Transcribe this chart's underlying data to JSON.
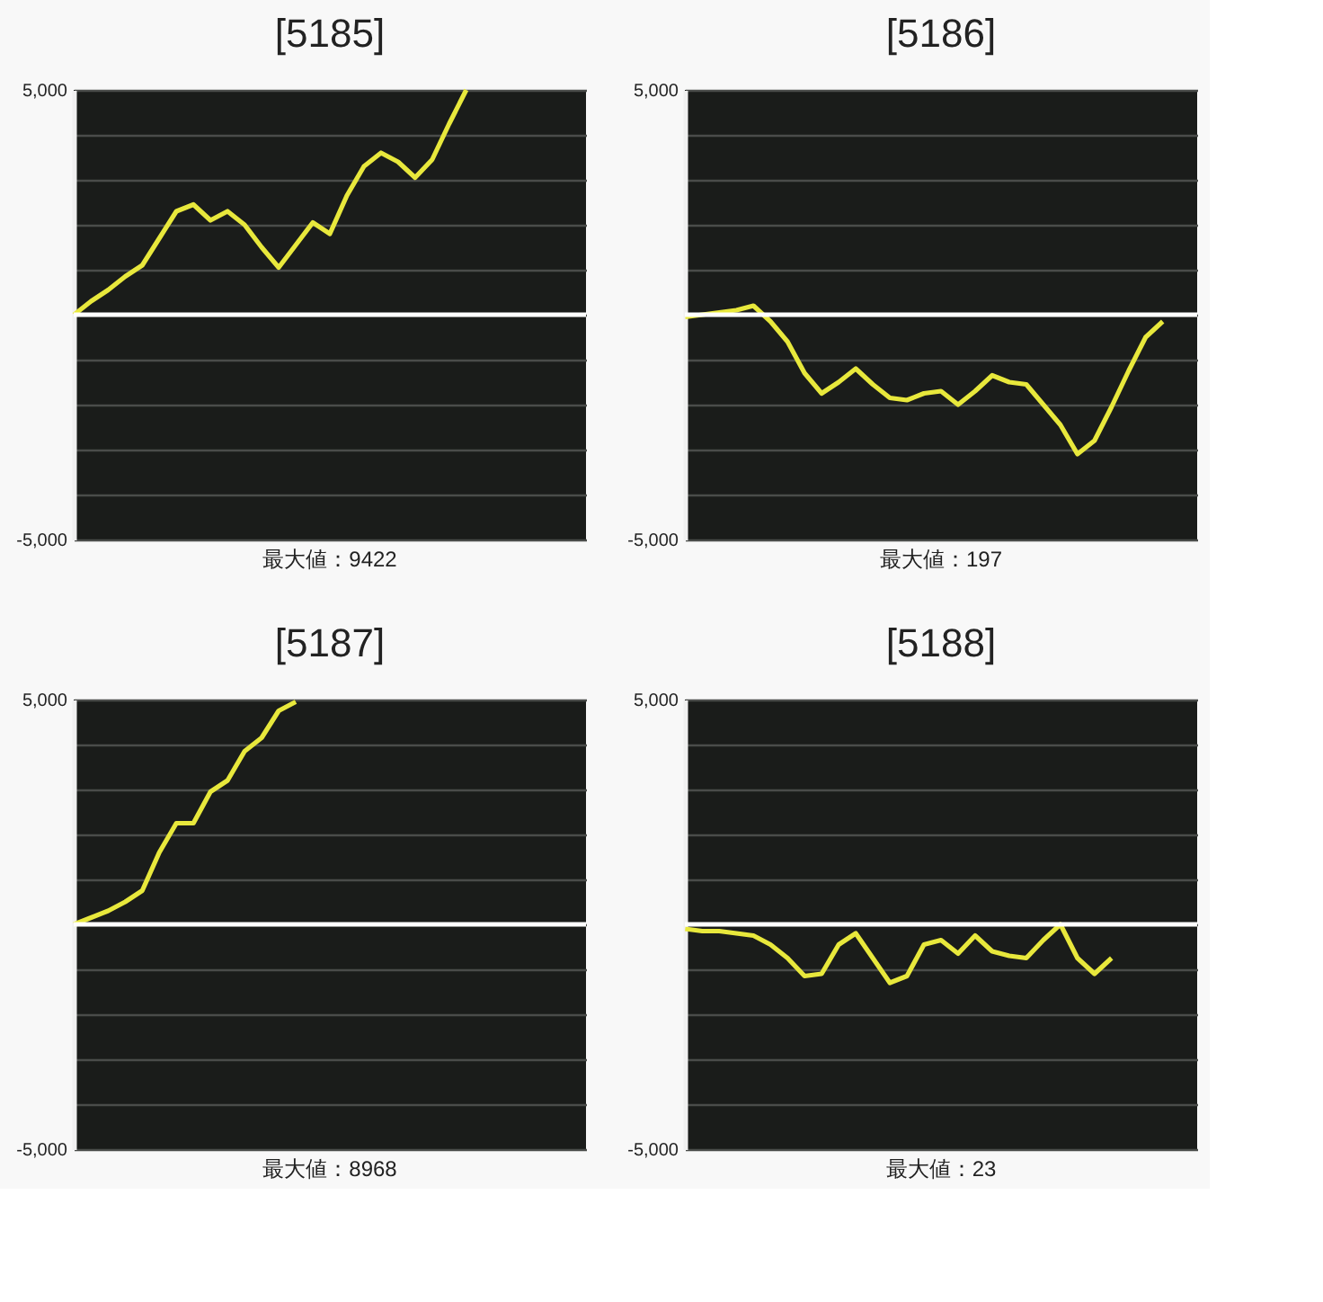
{
  "chart_data": [
    {
      "type": "line",
      "title": "[5185]",
      "categories": [
        null,
        null,
        null,
        null,
        null,
        null,
        null,
        null,
        null,
        null,
        null,
        null,
        null,
        null,
        null,
        null,
        null,
        null,
        null,
        null,
        null,
        null,
        null,
        null,
        null,
        null,
        null,
        null,
        null,
        null,
        null
      ],
      "series": [
        {
          "color": "#e8e83c",
          "values": [
            0,
            300,
            550,
            850,
            1100,
            1700,
            2300,
            2450,
            2100,
            2300,
            2000,
            1500,
            1050,
            1550,
            2050,
            1800,
            2650,
            3300,
            3600,
            3400,
            3050,
            3450,
            4250,
            5000,
            null,
            null,
            null,
            null,
            null,
            null,
            null
          ]
        }
      ],
      "ylim": [
        -5000,
        5000
      ],
      "yticks": [
        {
          "value": 5000,
          "label": "5,000"
        },
        {
          "value": 4000,
          "label": null
        },
        {
          "value": 3000,
          "label": null
        },
        {
          "value": 2000,
          "label": null
        },
        {
          "value": 1000,
          "label": null
        },
        {
          "value": 0,
          "label": null
        },
        {
          "value": -1000,
          "label": null
        },
        {
          "value": -2000,
          "label": null
        },
        {
          "value": -3000,
          "label": null
        },
        {
          "value": -4000,
          "label": null
        },
        {
          "value": -5000,
          "label": "-5,000"
        }
      ],
      "grid": "y",
      "tick_labels": "y",
      "ref_lines": [
        {
          "axis": "y",
          "value": 0,
          "color": "#ffffff"
        }
      ],
      "annotations": [
        "最大値：9422"
      ]
    },
    {
      "type": "line",
      "title": "[5186]",
      "categories": [
        null,
        null,
        null,
        null,
        null,
        null,
        null,
        null,
        null,
        null,
        null,
        null,
        null,
        null,
        null,
        null,
        null,
        null,
        null,
        null,
        null,
        null,
        null,
        null,
        null,
        null,
        null,
        null,
        null,
        null,
        null
      ],
      "series": [
        {
          "color": "#e8e83c",
          "values": [
            -50,
            0,
            50,
            100,
            200,
            -150,
            -600,
            -1300,
            -1750,
            -1500,
            -1200,
            -1550,
            -1850,
            -1900,
            -1750,
            -1700,
            -2000,
            -1700,
            -1350,
            -1500,
            -1550,
            -2000,
            -2450,
            -3100,
            -2800,
            -2050,
            -1250,
            -500,
            -150,
            null,
            null
          ]
        }
      ],
      "ylim": [
        -5000,
        5000
      ],
      "yticks": [
        {
          "value": 5000,
          "label": "5,000"
        },
        {
          "value": 4000,
          "label": null
        },
        {
          "value": 3000,
          "label": null
        },
        {
          "value": 2000,
          "label": null
        },
        {
          "value": 1000,
          "label": null
        },
        {
          "value": 0,
          "label": null
        },
        {
          "value": -1000,
          "label": null
        },
        {
          "value": -2000,
          "label": null
        },
        {
          "value": -3000,
          "label": null
        },
        {
          "value": -4000,
          "label": null
        },
        {
          "value": -5000,
          "label": "-5,000"
        }
      ],
      "grid": "y",
      "tick_labels": "y",
      "ref_lines": [
        {
          "axis": "y",
          "value": 0,
          "color": "#ffffff"
        }
      ],
      "annotations": [
        "最大値：197"
      ]
    },
    {
      "type": "line",
      "title": "[5187]",
      "categories": [
        null,
        null,
        null,
        null,
        null,
        null,
        null,
        null,
        null,
        null,
        null,
        null,
        null,
        null,
        null,
        null,
        null,
        null,
        null,
        null,
        null,
        null,
        null,
        null,
        null,
        null,
        null,
        null,
        null,
        null,
        null
      ],
      "series": [
        {
          "color": "#e8e83c",
          "values": [
            0,
            150,
            300,
            500,
            750,
            1600,
            2250,
            2250,
            2950,
            3200,
            3850,
            4150,
            4750,
            4950,
            null,
            null,
            null,
            null,
            null,
            null,
            null,
            null,
            null,
            null,
            null,
            null,
            null,
            null,
            null,
            null,
            null
          ]
        }
      ],
      "ylim": [
        -5000,
        5000
      ],
      "yticks": [
        {
          "value": 5000,
          "label": "5,000"
        },
        {
          "value": 4000,
          "label": null
        },
        {
          "value": 3000,
          "label": null
        },
        {
          "value": 2000,
          "label": null
        },
        {
          "value": 1000,
          "label": null
        },
        {
          "value": 0,
          "label": null
        },
        {
          "value": -1000,
          "label": null
        },
        {
          "value": -2000,
          "label": null
        },
        {
          "value": -3000,
          "label": null
        },
        {
          "value": -4000,
          "label": null
        },
        {
          "value": -5000,
          "label": "-5,000"
        }
      ],
      "grid": "y",
      "tick_labels": "y",
      "ref_lines": [
        {
          "axis": "y",
          "value": 0,
          "color": "#ffffff"
        }
      ],
      "annotations": [
        "最大値：8968"
      ]
    },
    {
      "type": "line",
      "title": "[5188]",
      "categories": [
        null,
        null,
        null,
        null,
        null,
        null,
        null,
        null,
        null,
        null,
        null,
        null,
        null,
        null,
        null,
        null,
        null,
        null,
        null,
        null,
        null,
        null,
        null,
        null,
        null,
        null,
        null,
        null,
        null,
        null,
        null
      ],
      "series": [
        {
          "color": "#e8e83c",
          "values": [
            -100,
            -150,
            -150,
            -200,
            -250,
            -450,
            -750,
            -1150,
            -1100,
            -450,
            -200,
            -750,
            -1300,
            -1150,
            -450,
            -350,
            -650,
            -250,
            -600,
            -700,
            -750,
            -350,
            0,
            -750,
            -1100,
            -750,
            null,
            null,
            null,
            null,
            null
          ]
        }
      ],
      "ylim": [
        -5000,
        5000
      ],
      "yticks": [
        {
          "value": 5000,
          "label": "5,000"
        },
        {
          "value": 4000,
          "label": null
        },
        {
          "value": 3000,
          "label": null
        },
        {
          "value": 2000,
          "label": null
        },
        {
          "value": 1000,
          "label": null
        },
        {
          "value": 0,
          "label": null
        },
        {
          "value": -1000,
          "label": null
        },
        {
          "value": -2000,
          "label": null
        },
        {
          "value": -3000,
          "label": null
        },
        {
          "value": -4000,
          "label": null
        },
        {
          "value": -5000,
          "label": "-5,000"
        }
      ],
      "grid": "y",
      "tick_labels": "y",
      "ref_lines": [
        {
          "axis": "y",
          "value": 0,
          "color": "#ffffff"
        }
      ],
      "annotations": [
        "最大値：23"
      ]
    }
  ]
}
